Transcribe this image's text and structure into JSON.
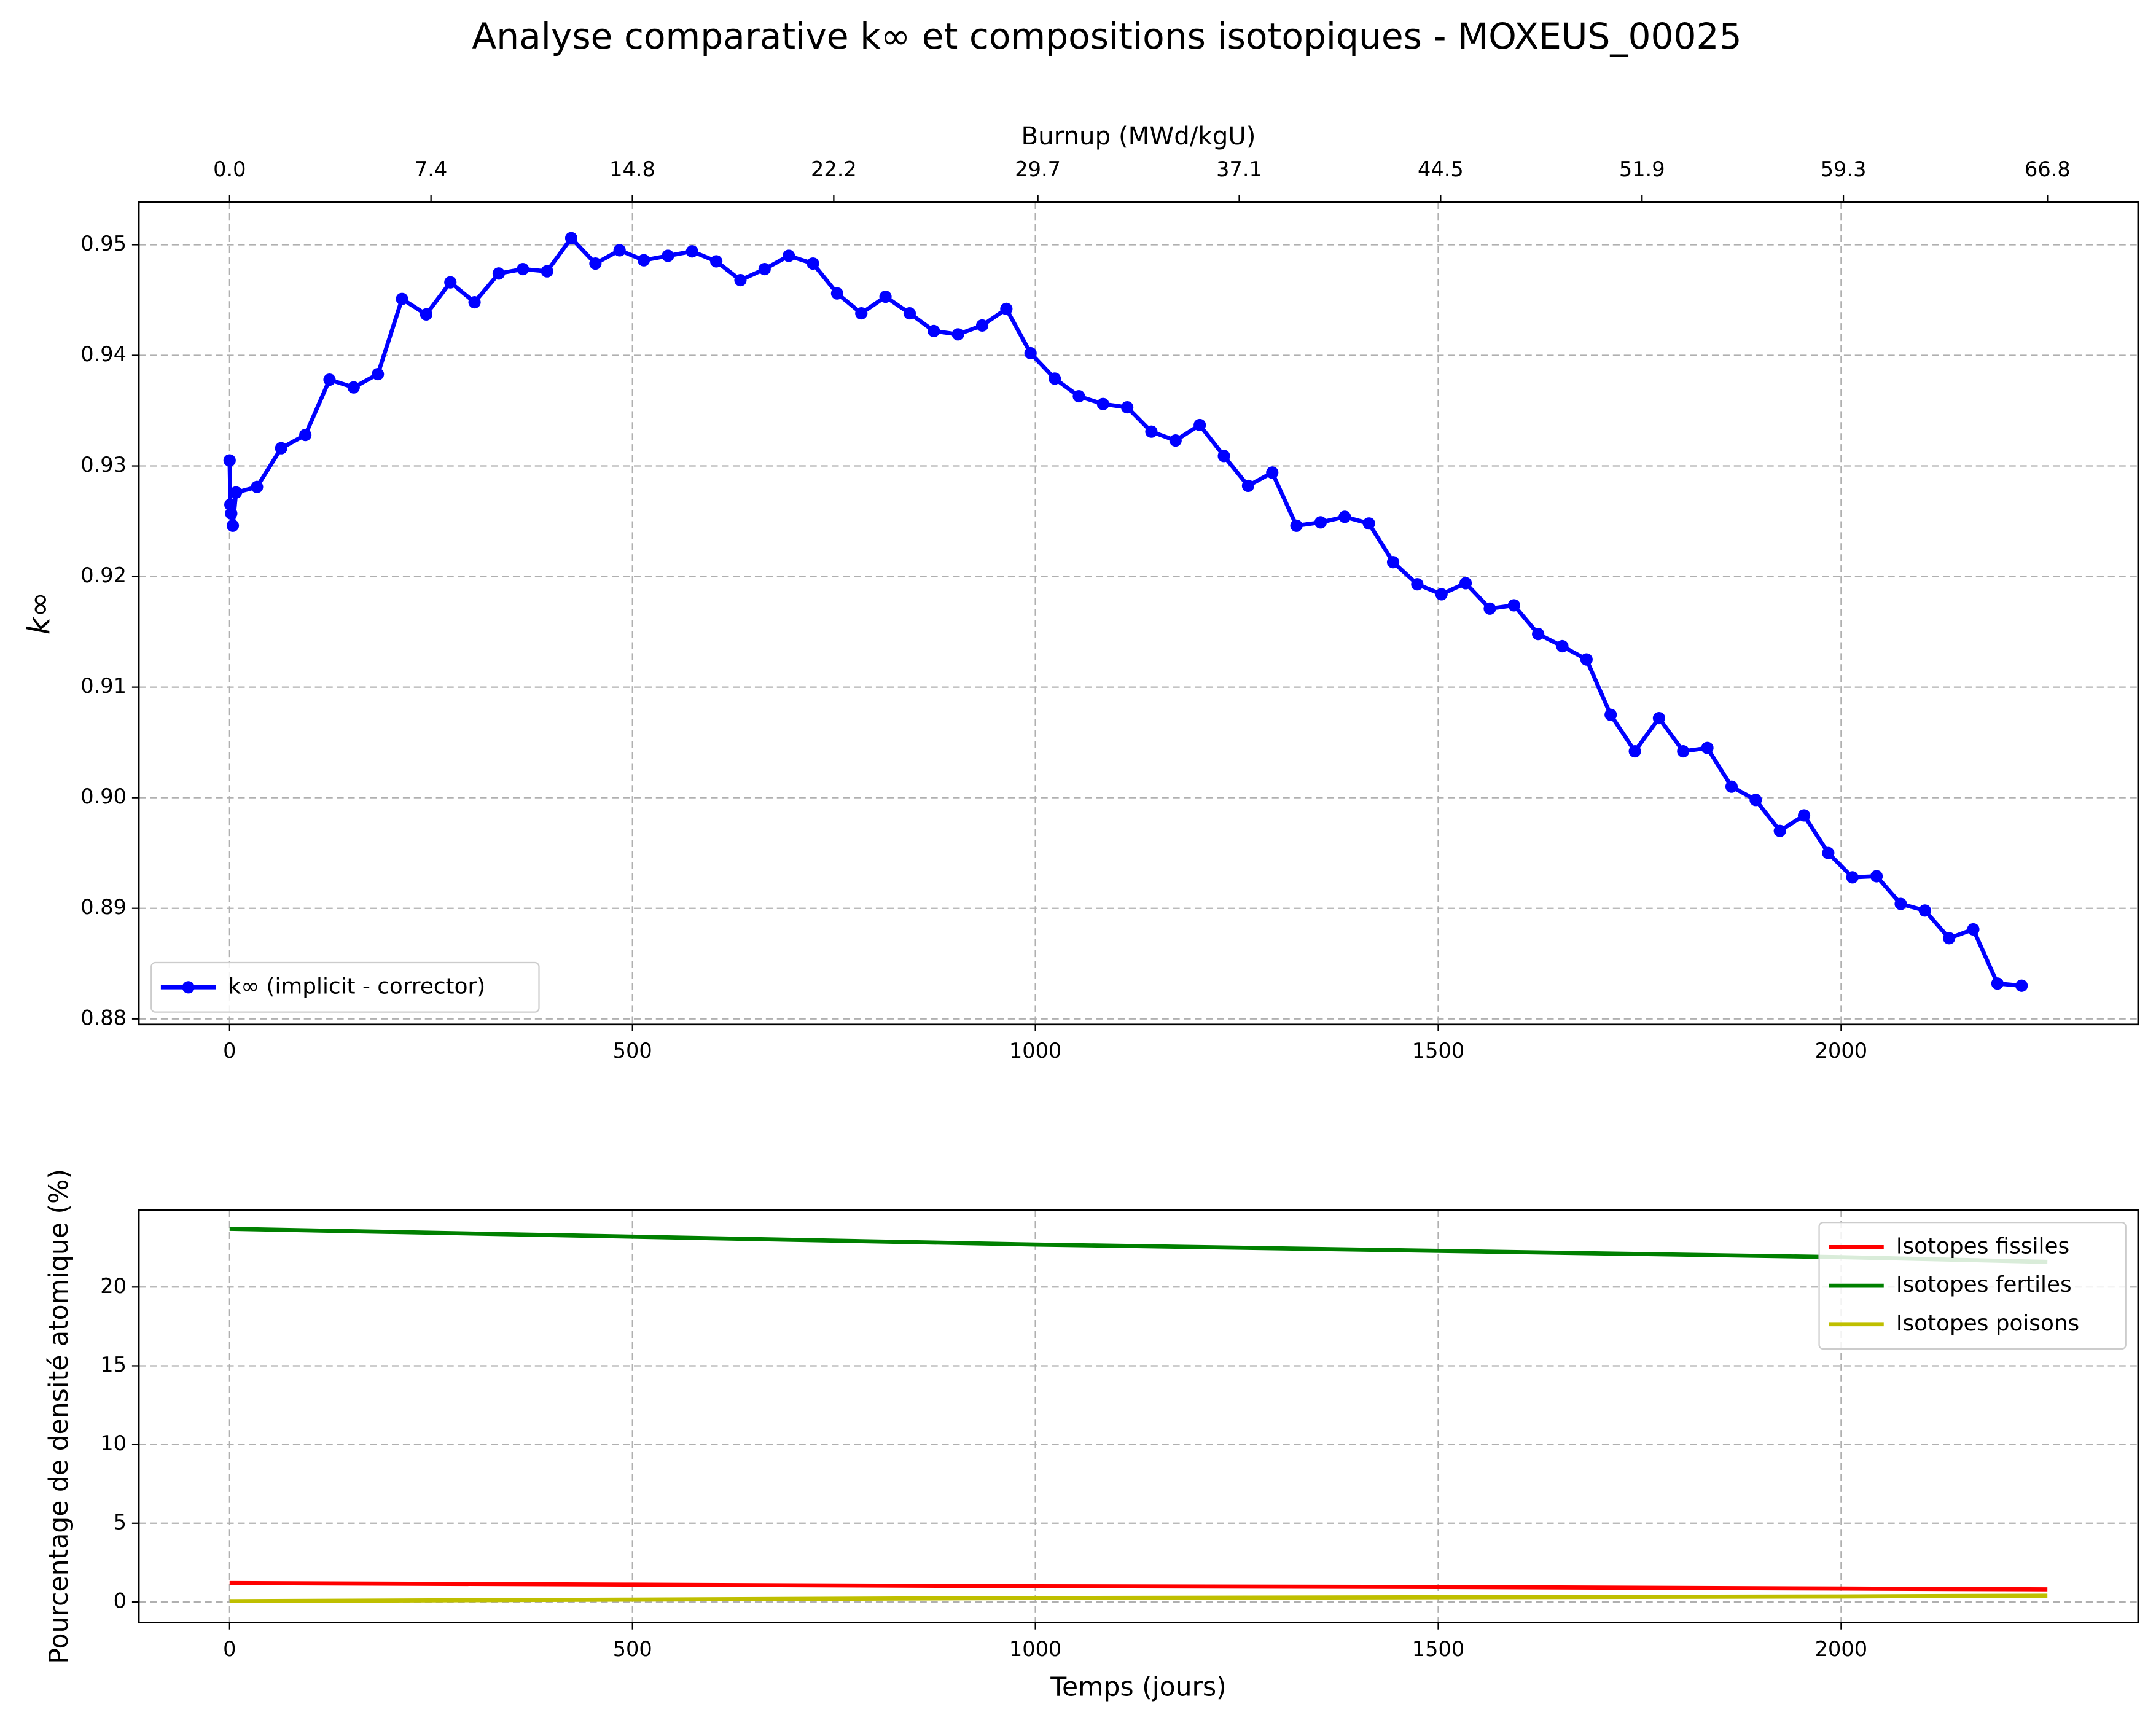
{
  "chart_data": [
    {
      "type": "line",
      "title": "Analyse comparative k∞ et compositions isotopiques - MOXEUS_00025",
      "y_label": "k∞",
      "x2_label": "Burnup (MWd/kgU)",
      "x": [
        0,
        1,
        2,
        4,
        8,
        34,
        64,
        94,
        124,
        154,
        184,
        214,
        244,
        274,
        304,
        334,
        364,
        394,
        424,
        454,
        484,
        514,
        544,
        574,
        604,
        634,
        664,
        694,
        724,
        754,
        784,
        814,
        844,
        874,
        904,
        934,
        964,
        994,
        1024,
        1054,
        1084,
        1114,
        1144,
        1174,
        1204,
        1234,
        1264,
        1294,
        1324,
        1354,
        1384,
        1414,
        1444,
        1474,
        1504,
        1534,
        1564,
        1594,
        1624,
        1654,
        1684,
        1714,
        1744,
        1774,
        1804,
        1834,
        1864,
        1894,
        1924,
        1954,
        1984,
        2014,
        2044,
        2074,
        2104,
        2134,
        2164,
        2194,
        2224
      ],
      "series": [
        {
          "name": "k∞ (implicit - corrector)",
          "color": "#0000ff",
          "markers": true,
          "values": [
            0.9305,
            0.9265,
            0.9257,
            0.9246,
            0.9276,
            0.9281,
            0.9316,
            0.9328,
            0.9378,
            0.9371,
            0.9383,
            0.9451,
            0.9437,
            0.9466,
            0.9448,
            0.9474,
            0.9478,
            0.9476,
            0.9506,
            0.9483,
            0.9495,
            0.9486,
            0.949,
            0.9494,
            0.9485,
            0.9468,
            0.9478,
            0.949,
            0.9483,
            0.9456,
            0.9438,
            0.9453,
            0.9438,
            0.9422,
            0.9419,
            0.9427,
            0.9442,
            0.9402,
            0.9379,
            0.9363,
            0.9356,
            0.9353,
            0.9331,
            0.9323,
            0.9337,
            0.9309,
            0.9282,
            0.9294,
            0.9246,
            0.9249,
            0.9254,
            0.9248,
            0.9213,
            0.9193,
            0.9184,
            0.9194,
            0.9171,
            0.9174,
            0.9148,
            0.9137,
            0.9125,
            0.9075,
            0.9042,
            0.9072,
            0.9042,
            0.9045,
            0.901,
            0.8998,
            0.897,
            0.8984,
            0.895,
            0.8928,
            0.8929,
            0.8904,
            0.8898,
            0.8873,
            0.8881,
            0.8832,
            0.883
          ]
        }
      ],
      "xlim": [
        -112.6,
        2368.6
      ],
      "xticks": [
        0,
        500,
        1000,
        1500,
        2000
      ],
      "x2lim": [
        -3.334,
        70.13
      ],
      "x2ticks": [
        {
          "value": 0,
          "label": "0.0"
        },
        7.4,
        14.8,
        22.2,
        29.7,
        37.1,
        44.5,
        51.9,
        59.3,
        66.8
      ],
      "ylim": [
        0.8795,
        0.95385
      ],
      "yticks": [
        {
          "value": 0.88,
          "label": "0.88"
        },
        {
          "value": 0.89,
          "label": "0.89"
        },
        {
          "value": 0.9,
          "label": "0.90"
        },
        0.91,
        0.92,
        0.93,
        0.94,
        0.95
      ],
      "grid": true,
      "legend": "lower left"
    },
    {
      "type": "line",
      "x_label": "Temps (jours)",
      "y_label": "Pourcentage de densité atomique (%)",
      "x": [
        0,
        500,
        1000,
        1500,
        2000,
        2256
      ],
      "series": [
        {
          "name": "Isotopes fissiles",
          "color": "#ff0000",
          "values": [
            1.2,
            1.1,
            1.0,
            0.95,
            0.85,
            0.8
          ]
        },
        {
          "name": "Isotopes fertiles",
          "color": "#008000",
          "values": [
            23.7,
            23.2,
            22.7,
            22.3,
            21.9,
            21.6
          ]
        },
        {
          "name": "Isotopes poisons",
          "color": "#bfbf00",
          "values": [
            0.05,
            0.15,
            0.25,
            0.3,
            0.35,
            0.4
          ]
        }
      ],
      "xlim": [
        -112.6,
        2368.6
      ],
      "xticks": [
        0,
        500,
        1000,
        1500,
        2000
      ],
      "ylim": [
        -1.31,
        24.89
      ],
      "yticks": [
        0,
        5,
        10,
        15,
        20
      ],
      "grid": true,
      "legend": "upper right"
    }
  ]
}
